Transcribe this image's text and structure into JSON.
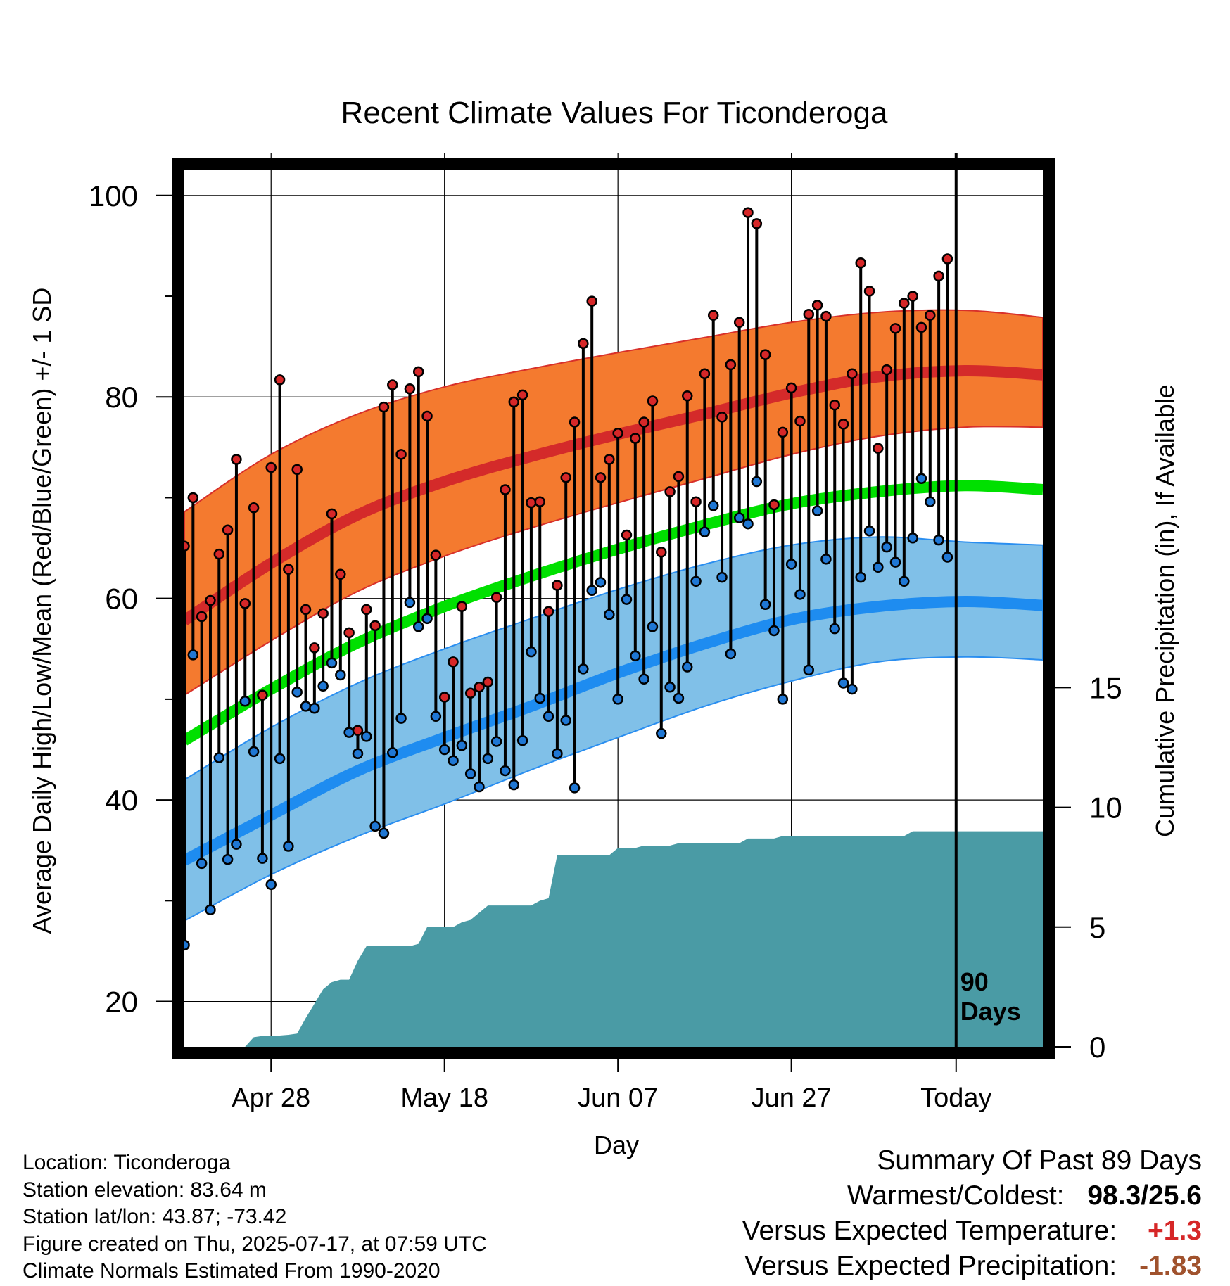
{
  "chart_data": {
    "type": "line",
    "title": "Recent Climate Values For Ticonderoga",
    "xlabel": "Day",
    "ylabel": "Average Daily High/Low/Mean (Red/Blue/Green) +/- 1 SD",
    "y2label": "Cumulative Precipitation (in), If Available",
    "ylim": [
      15.5,
      102.5
    ],
    "y2lim": [
      0,
      36.6
    ],
    "y_ticks": [
      "20",
      "40",
      "60",
      "80",
      "100"
    ],
    "y2_ticks": [
      "0",
      "5",
      "10",
      "15"
    ],
    "x_ticks": [
      {
        "label": "Apr 28",
        "day": 10
      },
      {
        "label": "May 18",
        "day": 30
      },
      {
        "label": "Jun 07",
        "day": 50
      },
      {
        "label": "Jun 27",
        "day": 70
      },
      {
        "label": "Today",
        "day": 89
      }
    ],
    "x_range": [
      0,
      99
    ],
    "today_day": 89,
    "today_label": [
      "90",
      "Days"
    ],
    "grid": true,
    "normals": {
      "days": [
        0,
        10,
        20,
        30,
        40,
        50,
        60,
        70,
        80,
        90,
        99
      ],
      "high_mean": [
        57.8,
        63.5,
        68.3,
        71.6,
        74.1,
        76.3,
        78.3,
        80.4,
        82.0,
        82.6,
        82.2
      ],
      "high_sd_upper": [
        68.6,
        74.3,
        78.3,
        81.0,
        82.8,
        84.4,
        85.9,
        87.4,
        88.4,
        88.6,
        87.9
      ],
      "high_sd_lower": [
        50.4,
        55.8,
        60.7,
        64.2,
        67.0,
        69.5,
        71.9,
        74.3,
        76.1,
        77.0,
        77.0
      ],
      "mean": [
        45.9,
        51.0,
        55.6,
        59.2,
        62.2,
        64.9,
        67.3,
        69.4,
        70.6,
        71.2,
        70.8
      ],
      "low_mean": [
        34.0,
        38.5,
        42.9,
        46.2,
        49.3,
        52.6,
        55.5,
        57.9,
        59.2,
        59.7,
        59.3
      ],
      "low_sd_upper": [
        42.0,
        47.2,
        51.6,
        55.0,
        58.0,
        60.9,
        63.4,
        65.3,
        66.1,
        65.6,
        65.3
      ],
      "low_sd_lower": [
        28.0,
        32.6,
        36.4,
        39.6,
        43.0,
        46.2,
        49.3,
        51.8,
        53.7,
        54.2,
        53.9
      ]
    },
    "series": [
      {
        "name": "High",
        "color": "#d62728",
        "days": [
          0,
          1,
          2,
          3,
          4,
          5,
          6,
          7,
          8,
          9,
          10,
          11,
          12,
          13,
          14,
          15,
          16,
          17,
          18,
          19,
          20,
          21,
          22,
          23,
          24,
          25,
          26,
          27,
          28,
          29,
          30,
          31,
          32,
          33,
          34,
          35,
          36,
          37,
          38,
          39,
          40,
          41,
          42,
          43,
          44,
          45,
          46,
          47,
          48,
          49,
          50,
          51,
          52,
          53,
          54,
          55,
          56,
          57,
          58,
          59,
          60,
          61,
          62,
          63,
          64,
          65,
          66,
          67,
          68,
          69,
          70,
          71,
          72,
          73,
          74,
          75,
          76,
          77,
          78,
          79,
          80,
          81,
          82,
          83,
          84,
          85,
          86,
          87,
          88
        ],
        "values": [
          65.2,
          70.0,
          58.2,
          59.8,
          64.4,
          66.8,
          73.8,
          59.5,
          69.0,
          50.4,
          73.0,
          81.7,
          62.9,
          72.8,
          58.9,
          55.1,
          58.5,
          68.4,
          62.4,
          56.6,
          46.9,
          58.9,
          57.3,
          79.0,
          81.2,
          74.3,
          80.8,
          82.5,
          78.1,
          64.3,
          50.2,
          53.7,
          59.2,
          50.6,
          51.2,
          51.7,
          60.1,
          70.8,
          79.5,
          80.2,
          69.5,
          69.6,
          58.7,
          61.3,
          72.0,
          77.5,
          85.3,
          89.5,
          72.0,
          73.8,
          76.4,
          66.3,
          75.9,
          77.5,
          79.6,
          64.6,
          70.6,
          72.1,
          80.1,
          69.6,
          82.3,
          88.1,
          78.0,
          83.2,
          87.4,
          98.3,
          97.2,
          84.2,
          69.3,
          76.5,
          80.9,
          77.6,
          88.2,
          89.1,
          88.0,
          79.2,
          77.3,
          82.3,
          93.3,
          90.5,
          74.9,
          82.7,
          86.8,
          89.3,
          90.0,
          86.9,
          88.1,
          92.0,
          93.7
        ]
      },
      {
        "name": "Low",
        "color": "#1f77d4",
        "days": [
          0,
          1,
          2,
          3,
          4,
          5,
          6,
          7,
          8,
          9,
          10,
          11,
          12,
          13,
          14,
          15,
          16,
          17,
          18,
          19,
          20,
          21,
          22,
          23,
          24,
          25,
          26,
          27,
          28,
          29,
          30,
          31,
          32,
          33,
          34,
          35,
          36,
          37,
          38,
          39,
          40,
          41,
          42,
          43,
          44,
          45,
          46,
          47,
          48,
          49,
          50,
          51,
          52,
          53,
          54,
          55,
          56,
          57,
          58,
          59,
          60,
          61,
          62,
          63,
          64,
          65,
          66,
          67,
          68,
          69,
          70,
          71,
          72,
          73,
          74,
          75,
          76,
          77,
          78,
          79,
          80,
          81,
          82,
          83,
          84,
          85,
          86,
          87,
          88
        ],
        "values": [
          25.6,
          54.4,
          33.7,
          29.1,
          44.2,
          34.1,
          35.6,
          49.8,
          44.8,
          34.2,
          31.6,
          44.1,
          35.4,
          50.7,
          49.3,
          49.1,
          51.3,
          53.6,
          52.4,
          46.7,
          44.6,
          46.3,
          37.4,
          36.7,
          44.7,
          48.1,
          59.6,
          57.2,
          58.0,
          48.3,
          45.0,
          43.9,
          45.4,
          42.6,
          41.3,
          44.1,
          45.8,
          42.9,
          41.5,
          45.9,
          54.7,
          50.1,
          48.3,
          44.6,
          47.9,
          41.2,
          53.0,
          60.8,
          61.6,
          58.4,
          50.0,
          59.9,
          54.3,
          52.0,
          57.2,
          46.6,
          51.2,
          50.1,
          53.2,
          61.7,
          66.6,
          69.2,
          62.1,
          54.5,
          68.0,
          67.4,
          71.6,
          59.4,
          56.8,
          50.0,
          63.4,
          60.4,
          52.9,
          68.7,
          63.9,
          57.0,
          51.6,
          51.0,
          62.1,
          66.7,
          63.1,
          65.1,
          63.6,
          61.7,
          66.0,
          71.9,
          69.6,
          65.8,
          64.1
        ]
      },
      {
        "name": "Cumulative Precipitation",
        "color": "#4a9ba5",
        "days": [
          0,
          7,
          8,
          9,
          10,
          11,
          12,
          13,
          14,
          15,
          16,
          17,
          18,
          19,
          20,
          21,
          22,
          23,
          24,
          25,
          26,
          27,
          28,
          29,
          30,
          31,
          32,
          33,
          34,
          35,
          36,
          37,
          38,
          39,
          40,
          41,
          42,
          43,
          44,
          45,
          46,
          47,
          48,
          49,
          50,
          51,
          52,
          53,
          54,
          55,
          56,
          57,
          58,
          59,
          60,
          61,
          62,
          63,
          64,
          65,
          66,
          67,
          68,
          69,
          70,
          71,
          72,
          73,
          74,
          75,
          76,
          77,
          78,
          79,
          80,
          81,
          82,
          83,
          84,
          85,
          86,
          87,
          88,
          89,
          90,
          95,
          99
        ],
        "values": [
          0,
          0,
          0.4,
          0.45,
          0.45,
          0.47,
          0.5,
          0.55,
          1.2,
          1.8,
          2.4,
          2.7,
          2.8,
          2.8,
          3.6,
          4.2,
          4.2,
          4.2,
          4.2,
          4.2,
          4.2,
          4.3,
          5.0,
          5.0,
          5.0,
          5.0,
          5.2,
          5.3,
          5.6,
          5.9,
          5.9,
          5.9,
          5.9,
          5.9,
          5.9,
          6.1,
          6.2,
          8.0,
          8.0,
          8.0,
          8.0,
          8.0,
          8.0,
          8.0,
          8.3,
          8.3,
          8.3,
          8.4,
          8.4,
          8.4,
          8.4,
          8.5,
          8.5,
          8.5,
          8.5,
          8.5,
          8.5,
          8.5,
          8.5,
          8.7,
          8.7,
          8.7,
          8.7,
          8.8,
          8.8,
          8.8,
          8.8,
          8.8,
          8.8,
          8.8,
          8.8,
          8.8,
          8.8,
          8.8,
          8.8,
          8.8,
          8.8,
          8.8,
          9.0,
          9.0,
          9.0,
          9.0,
          9.0,
          9.0,
          9.0,
          9.0,
          9.0
        ]
      }
    ]
  },
  "footer": {
    "location": "Location: Ticonderoga",
    "elevation": "Station elevation: 83.64 m",
    "latlon": "Station lat/lon: 43.87; -73.42",
    "created": "Figure created on Thu, 2025-07-17, at 07:59 UTC",
    "normals": "Climate Normals Estimated From 1990-2020"
  },
  "summary": {
    "heading": "Summary Of Past 89 Days",
    "warm_cold_label": "Warmest/Coldest:",
    "warm_cold_value": "98.3/25.6",
    "temp_label": "Versus Expected Temperature:",
    "temp_value": "+1.3",
    "temp_color": "#d62728",
    "precip_label": "Versus Expected Precipitation:",
    "precip_value": "-1.83",
    "precip_color": "#a0522d"
  },
  "colors": {
    "high_band": "#f47a2f",
    "high_line": "#d42a2a",
    "mean_line": "#00e000",
    "low_band": "#80c0e8",
    "low_line": "#1e8cf0",
    "precip_fill": "#4a9ba5"
  }
}
